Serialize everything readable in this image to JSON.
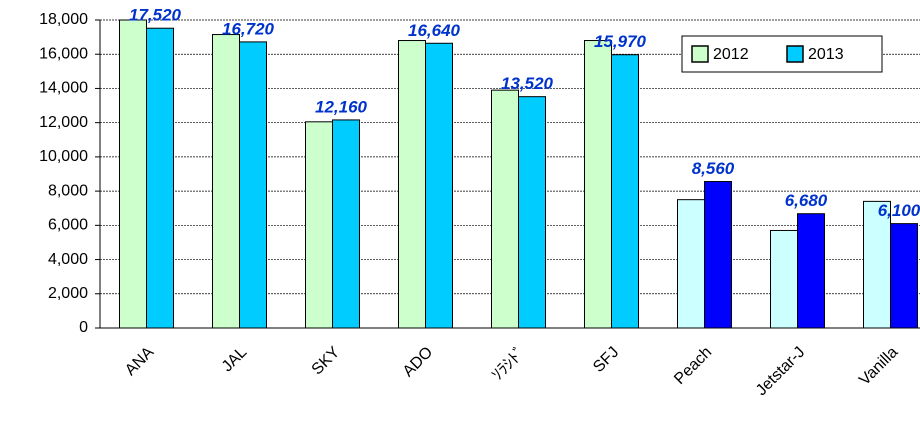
{
  "chart_data": {
    "type": "bar",
    "categories": [
      "ANA",
      "JAL",
      "SKY",
      "ADO",
      "ｿﾗｼﾄﾞ",
      "SFJ",
      "Peach",
      "Jetstar-J",
      "Vanilla"
    ],
    "series": [
      {
        "name": "2012",
        "color": "#ccffcc",
        "bar_colors": [
          "#ccffcc",
          "#ccffcc",
          "#ccffcc",
          "#ccffcc",
          "#ccffcc",
          "#ccffcc",
          "#ccffff",
          "#ccffff",
          "#ccffff"
        ],
        "values": [
          18000,
          17150,
          12050,
          16800,
          13900,
          16800,
          7500,
          5700,
          7400
        ]
      },
      {
        "name": "2013",
        "color": "#00ccff",
        "bar_colors": [
          "#00ccff",
          "#00ccff",
          "#00ccff",
          "#00ccff",
          "#00ccff",
          "#00ccff",
          "#0000ff",
          "#0000ff",
          "#0000ff"
        ],
        "values": [
          17520,
          16720,
          12160,
          16640,
          13520,
          15970,
          8560,
          6680,
          6100
        ],
        "value_labels": [
          "17,520",
          "16,720",
          "12,160",
          "16,640",
          "13,520",
          "15,970",
          "8,560",
          "6,680",
          "6,100"
        ]
      }
    ],
    "ylim": [
      0,
      18000
    ],
    "yticks": [
      0,
      {
        "value": 2000,
        "label": "2,000"
      },
      {
        "value": 4000,
        "label": "4,000"
      },
      {
        "value": 6000,
        "label": "6,000"
      },
      {
        "value": 8000,
        "label": "8,000"
      },
      {
        "value": 10000,
        "label": "10,000"
      },
      {
        "value": 12000,
        "label": "12,000"
      },
      {
        "value": 14000,
        "label": "14,000"
      },
      {
        "value": 16000,
        "label": "16,000"
      },
      {
        "value": 18000,
        "label": "18,000"
      }
    ],
    "grid": true,
    "legend": "top-right"
  }
}
